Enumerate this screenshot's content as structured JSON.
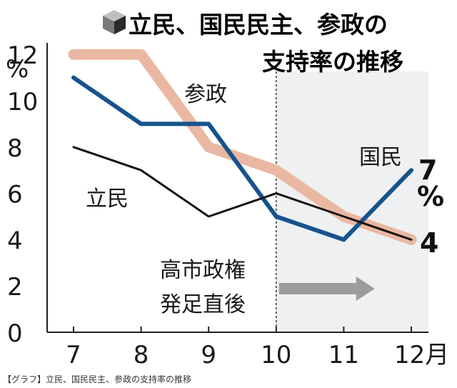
{
  "chart_data": {
    "type": "line",
    "title_line1": "立民、国民民主、参政の",
    "title_line2": "支持率の推移",
    "title_icon": "box-icon",
    "x": [
      7,
      8,
      9,
      10,
      11,
      12
    ],
    "x_tick_labels": [
      "7",
      "8",
      "9",
      "10",
      "11",
      "12月"
    ],
    "y_ticks": [
      0,
      2,
      4,
      6,
      8,
      10,
      12
    ],
    "y_unit": "%",
    "ylim": [
      0,
      12
    ],
    "series": [
      {
        "name": "参政",
        "color": "#eab8a2",
        "values": [
          12,
          12,
          8,
          7,
          5,
          4
        ]
      },
      {
        "name": "国民",
        "color": "#17538c",
        "values": [
          11,
          9,
          9,
          5,
          4,
          7
        ]
      },
      {
        "name": "立民",
        "color": "#1a1210",
        "values": [
          8,
          7,
          5,
          6,
          5,
          4
        ]
      }
    ],
    "end_labels": {
      "top": "7",
      "top_unit": "%",
      "bottom": "4"
    },
    "annotation": {
      "line1": "高市政権",
      "line2": "発足直後",
      "from_x": 10,
      "shade_color": "#eef0f2",
      "arrow_color": "#9c9c9c"
    }
  },
  "caption": "【グラフ】立民、国民民主、参政の支持率の推移"
}
